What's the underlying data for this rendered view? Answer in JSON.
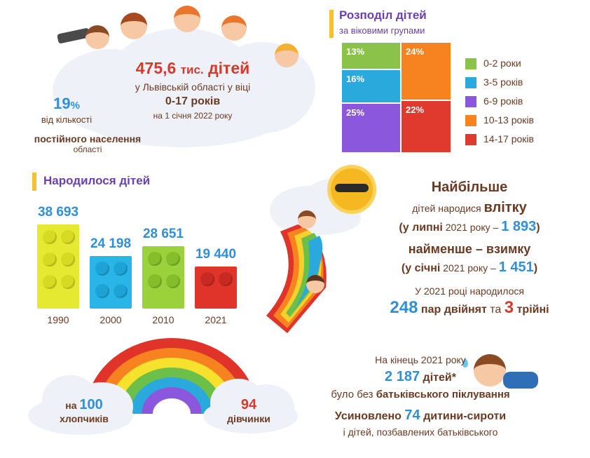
{
  "hero": {
    "children_num": "475,6",
    "children_unit": "тис.",
    "children_word": "дітей",
    "line1": "у Львівській області у віці",
    "age_range": "0-17 років",
    "date": "на 1 січня 2022 року"
  },
  "share": {
    "pct": "19",
    "pct_sign": "%",
    "line1": "від кількості",
    "line2": "постійного населення",
    "line3": "області"
  },
  "age_dist": {
    "title": "Розподіл дітей",
    "subtitle": "за віковими групами",
    "cells": [
      {
        "value": "13%",
        "color": "#8bc34a"
      },
      {
        "value": "16%",
        "color": "#29a9dc"
      },
      {
        "value": "25%",
        "color": "#8a57dd"
      },
      {
        "value": "24%",
        "color": "#f68220"
      },
      {
        "value": "22%",
        "color": "#e03a2e"
      }
    ],
    "legend": [
      {
        "label": "0-2 роки",
        "color": "#8bc34a"
      },
      {
        "label": "3-5 років",
        "color": "#29a9dc"
      },
      {
        "label": "6-9 років",
        "color": "#8a57dd"
      },
      {
        "label": "10-13 років",
        "color": "#f68220"
      },
      {
        "label": "14-17 років",
        "color": "#e03a2e"
      }
    ]
  },
  "born": {
    "title": "Народилося дітей",
    "bars": [
      {
        "value": "38 693",
        "year": "1990",
        "color": "#e6e932",
        "stud": "#d7da22"
      },
      {
        "value": "24 198",
        "year": "2000",
        "color": "#29b5e8",
        "stud": "#1ea3d6"
      },
      {
        "value": "28 651",
        "year": "2010",
        "color": "#9bd13a",
        "stud": "#86bd2a"
      },
      {
        "value": "19 440",
        "year": "2021",
        "color": "#e0332a",
        "stud": "#c72a22"
      }
    ]
  },
  "season": {
    "most": "Найбільше",
    "most_line": "дітей народися",
    "most_season": "влітку",
    "most_paren_open": "(у липні",
    "most_paren_year": "2021 року –",
    "most_value": "1 893",
    "most_paren_close": ")",
    "least_line": "найменше – взимку",
    "least_paren_open": "(у січні",
    "least_paren_year": "2021 року –",
    "least_value": "1 451",
    "least_paren_close": ")",
    "twins_intro": "У 2021 році народилося",
    "twins_value": "248",
    "twins_word": "пар двійнят",
    "twins_and": "та",
    "triplets_value": "3",
    "triplets_word": "трійні"
  },
  "gender": {
    "boys_prefix": "на",
    "boys_value": "100",
    "boys_word": "хлопчиків",
    "girls_value": "94",
    "girls_word": "дівчинки"
  },
  "orphans": {
    "intro": "На кінець 2021 року",
    "value": "2 187",
    "value_word": "дітей*",
    "line2_prefix": "було без",
    "line2_bold": "батьківського піклування",
    "adopted_prefix": "Усиновлено",
    "adopted_value": "74",
    "adopted_suffix": "дитини-сироти",
    "adopted_line2": "і дітей, позбавлених батьківського"
  }
}
